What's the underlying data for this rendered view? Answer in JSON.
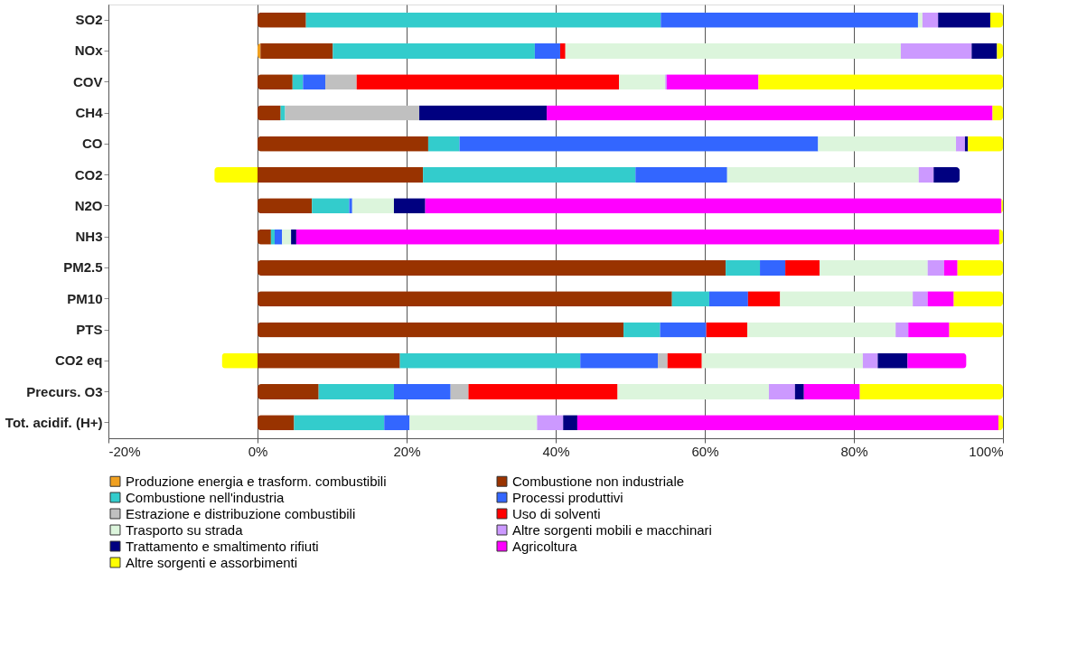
{
  "chart_data": {
    "type": "bar",
    "orientation": "horizontal",
    "stacked": true,
    "categories": [
      "SO2",
      "NOx",
      "COV",
      "CH4",
      "CO",
      "CO2",
      "N2O",
      "NH3",
      "PM2.5",
      "PM10",
      "PTS",
      "CO2 eq",
      "Precurs. O3",
      "Tot. acidif. (H+)"
    ],
    "series": [
      {
        "name": "Produzione energia e trasform. combustibili",
        "color": "#f0a020",
        "values": [
          null,
          0.4,
          null,
          null,
          null,
          null,
          null,
          null,
          null,
          null,
          null,
          null,
          null,
          null
        ]
      },
      {
        "name": "Combustione non industriale",
        "color": "#993300",
        "values": [
          6.5,
          9.7,
          4.7,
          3.1,
          22.9,
          22.2,
          7.3,
          1.8,
          62.8,
          55.6,
          49.1,
          19.1,
          8.2,
          4.9
        ]
      },
      {
        "name": "Combustione nell'industria",
        "color": "#33cccc",
        "values": [
          47.6,
          27.1,
          1.4,
          0.6,
          4.2,
          28.5,
          5.0,
          0.5,
          4.6,
          5.0,
          4.9,
          24.2,
          10.1,
          12.1
        ]
      },
      {
        "name": "Processi produttivi",
        "color": "#3366ff",
        "values": [
          34.5,
          3.4,
          3.0,
          null,
          48.1,
          12.3,
          0.4,
          1.0,
          3.4,
          5.2,
          6.2,
          10.4,
          7.6,
          3.4
        ]
      },
      {
        "name": "Estrazione e distribuzione combustibili",
        "color": "#c0c0c0",
        "values": [
          null,
          null,
          4.2,
          18.0,
          null,
          null,
          null,
          null,
          null,
          null,
          null,
          1.3,
          2.4,
          null
        ]
      },
      {
        "name": "Uso di solventi",
        "color": "#ff0000",
        "values": [
          null,
          0.7,
          35.2,
          null,
          null,
          null,
          null,
          null,
          4.6,
          4.3,
          5.5,
          4.6,
          20.0,
          null
        ]
      },
      {
        "name": "Trasporto su strada",
        "color": "#dcf5dc",
        "values": [
          0.6,
          45.0,
          6.2,
          null,
          18.5,
          25.7,
          5.6,
          1.2,
          14.5,
          17.8,
          19.9,
          21.6,
          20.3,
          17.1
        ]
      },
      {
        "name": "Altre sorgenti mobili e macchinari",
        "color": "#cc99ff",
        "values": [
          2.1,
          9.5,
          0.2,
          null,
          1.2,
          2.0,
          null,
          null,
          2.2,
          2.0,
          1.7,
          2.0,
          3.5,
          3.5
        ]
      },
      {
        "name": "Trattamento e smaltimento rifiuti",
        "color": "#000080",
        "values": [
          7.0,
          3.4,
          null,
          17.1,
          0.4,
          3.5,
          4.2,
          0.7,
          null,
          null,
          null,
          4.0,
          1.2,
          1.9
        ]
      },
      {
        "name": "Agricoltura",
        "color": "#ff00ff",
        "values": [
          null,
          null,
          12.3,
          59.8,
          null,
          null,
          77.3,
          94.3,
          1.8,
          3.5,
          5.5,
          7.9,
          7.5,
          56.5
        ]
      },
      {
        "name": "Altre sorgenti e assorbimenti",
        "color": "#ffff00",
        "values": [
          1.7,
          0.8,
          32.8,
          1.4,
          4.7,
          -5.8,
          0.2,
          0.5,
          6.1,
          6.6,
          7.2,
          -4.8,
          19.2,
          0.6
        ]
      }
    ],
    "xlim": [
      -20,
      100
    ],
    "xticks": [
      {
        "value": -20,
        "label": "-20%"
      },
      {
        "value": 0,
        "label": "0%"
      },
      {
        "value": 20,
        "label": "20%"
      },
      {
        "value": 40,
        "label": "40%"
      },
      {
        "value": 60,
        "label": "60%"
      },
      {
        "value": 80,
        "label": "80%"
      },
      {
        "value": 100,
        "label": "100%"
      }
    ],
    "grid": "x",
    "legend": "bottom"
  }
}
